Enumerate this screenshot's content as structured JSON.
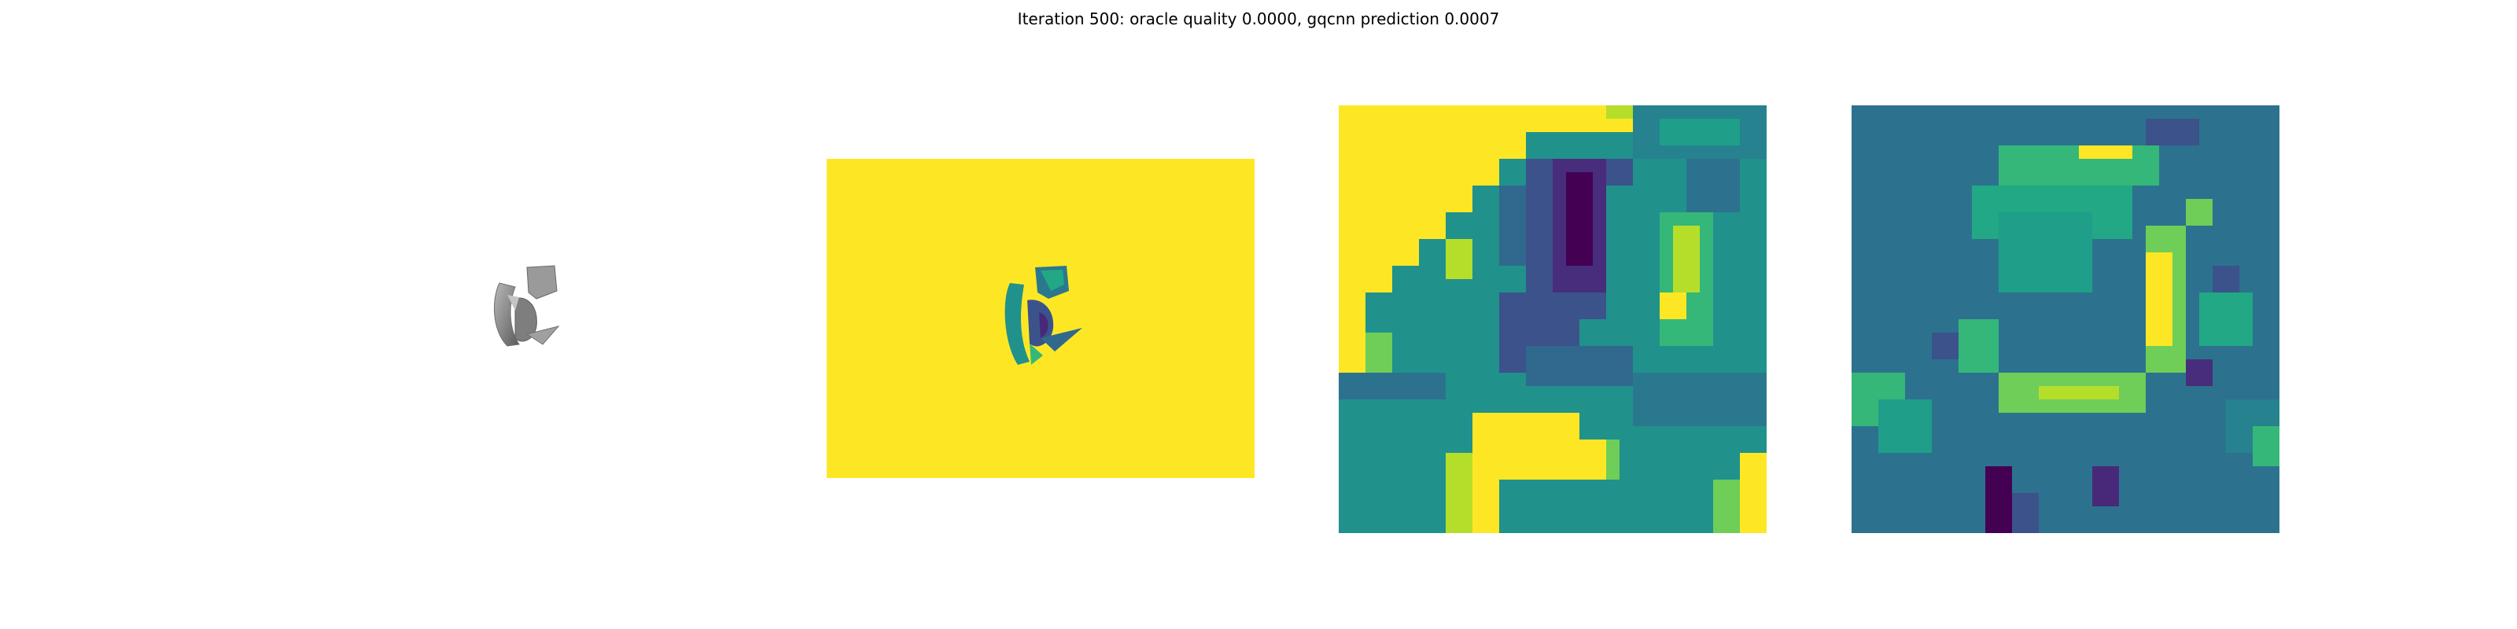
{
  "figure": {
    "title": "Iteration 500: oracle quality 0.0000, gqcnn prediction 0.0007"
  },
  "panels": [
    {
      "name": "object-render",
      "kind": "grayscale-render"
    },
    {
      "name": "depth-image",
      "kind": "viridis-image"
    },
    {
      "name": "depth-crop",
      "kind": "viridis-image"
    },
    {
      "name": "quality-heatmap",
      "kind": "viridis-image"
    }
  ],
  "colors": {
    "background": "#ffffff",
    "viridis_yellow": "#fde725",
    "viridis_green": "#5ec962",
    "viridis_teal": "#21918c",
    "viridis_blue": "#3b528b",
    "viridis_purple": "#440154",
    "object_gray": "#8c8c8c"
  }
}
